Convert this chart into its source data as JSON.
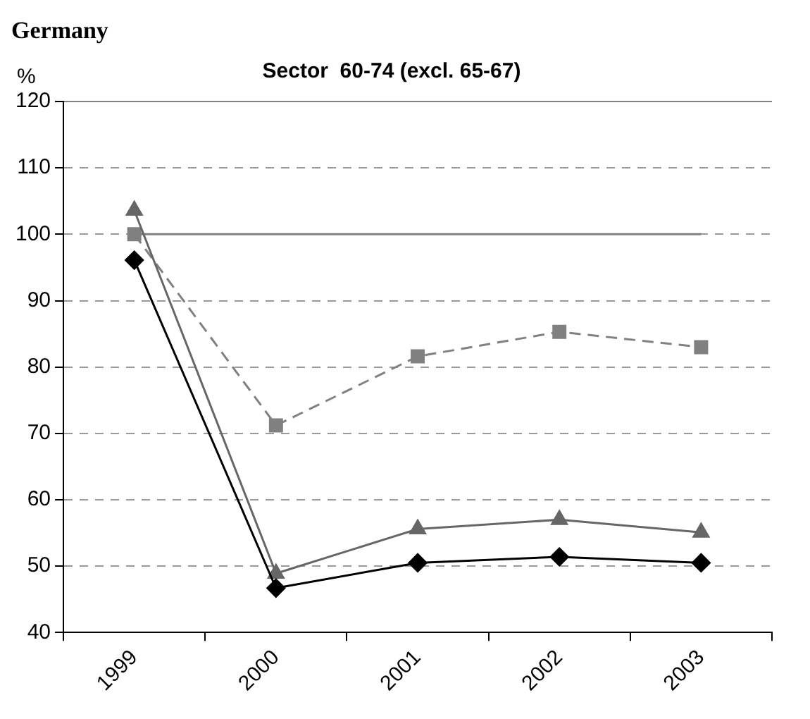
{
  "chart_data": {
    "type": "line",
    "title": "Germany",
    "subtitle": "Sector  60-74 (excl. 65-67)",
    "ylabel": "%",
    "categories": [
      "1999",
      "2000",
      "2001",
      "2002",
      "2003"
    ],
    "series": [
      {
        "color": "#000000",
        "marker": "diamond",
        "line_style": "solid",
        "values": [
          96.1,
          46.7,
          50.5,
          51.4,
          50.5
        ]
      },
      {
        "color": "#666666",
        "marker": "triangle",
        "line_style": "solid",
        "values": [
          103.6,
          48.9,
          55.6,
          57,
          55.1
        ]
      },
      {
        "color": "#808080",
        "marker": "square",
        "line_style": "dashed",
        "values": [
          100,
          71.2,
          81.6,
          85.3,
          83
        ]
      }
    ],
    "ylim": [
      40,
      120
    ],
    "yticks": [
      40,
      50,
      60,
      70,
      80,
      90,
      100,
      110,
      120
    ],
    "ref_lines": [
      {
        "axis": "y",
        "value": 100,
        "color": "#808080"
      }
    ],
    "grid": "y",
    "legend": false
  }
}
